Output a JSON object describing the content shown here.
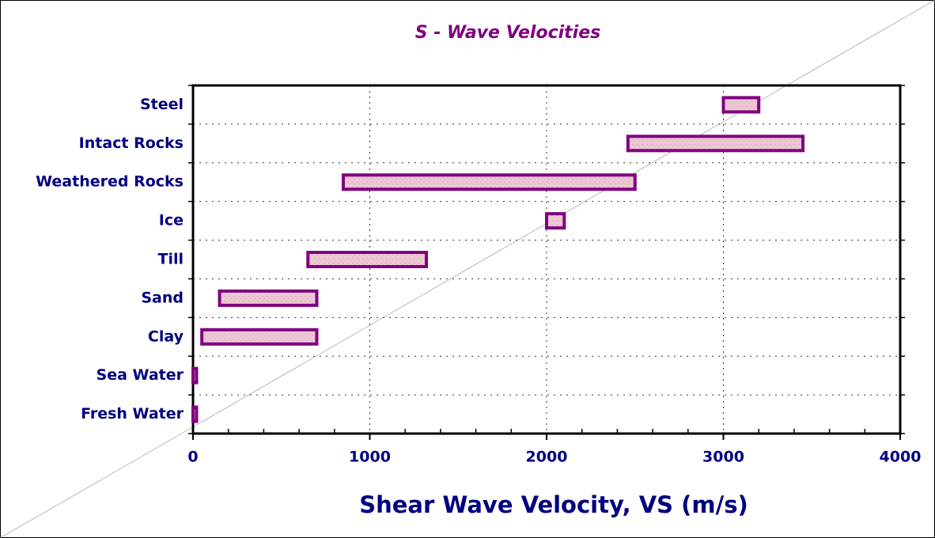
{
  "chart_data": {
    "type": "floating_bar",
    "title": "S - Wave Velocities",
    "x_label": "Shear Wave Velocity, VS (m/s)",
    "categories": [
      "Steel",
      "Intact Rocks",
      "Weathered Rocks",
      "Ice",
      "Till",
      "Sand",
      "Clay",
      "Sea Water",
      "Fresh Water"
    ],
    "low": [
      3000,
      2460,
      850,
      2000,
      650,
      150,
      50,
      0,
      0
    ],
    "high": [
      3200,
      3450,
      2500,
      2100,
      1320,
      700,
      700,
      20,
      20
    ],
    "color": "#e8c4d0",
    "edge_color": "#800080",
    "xlim": [
      0,
      4000
    ],
    "xticks": [
      0,
      1000,
      2000,
      3000,
      4000
    ],
    "grid": true
  }
}
